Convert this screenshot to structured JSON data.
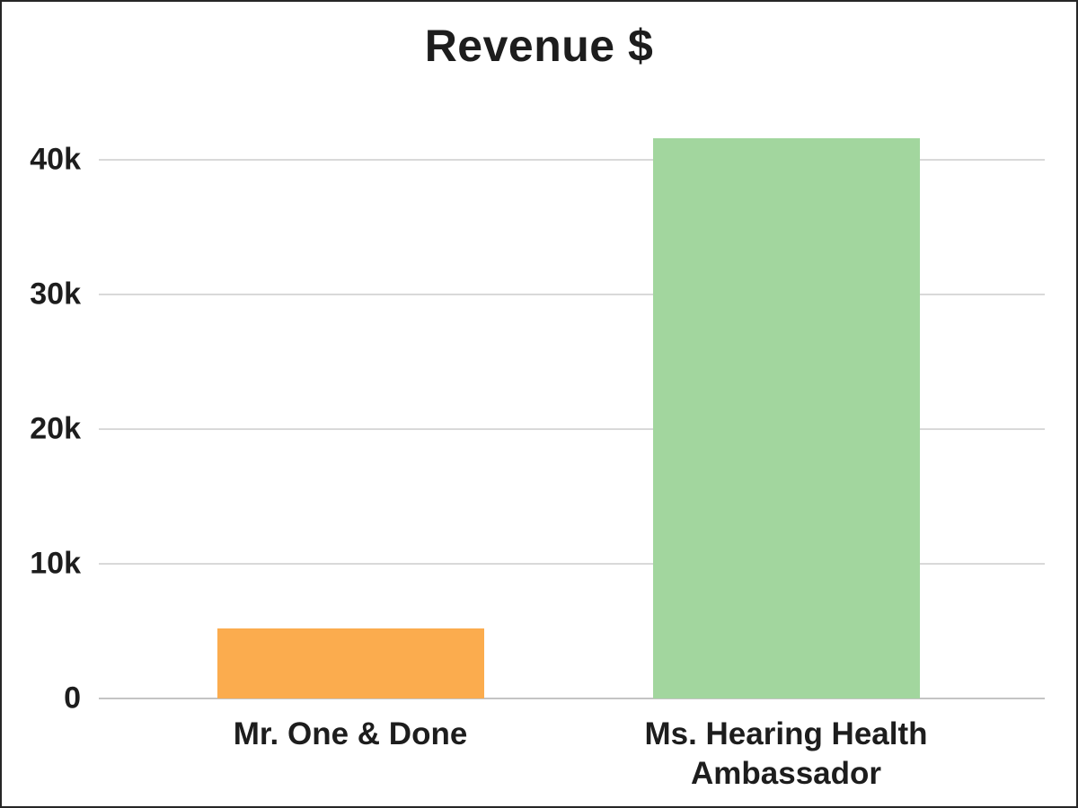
{
  "chart_data": {
    "type": "bar",
    "title": "Revenue $",
    "xlabel": "",
    "ylabel": "",
    "categories": [
      "Mr. One & Done",
      "Ms. Hearing Health Ambassador"
    ],
    "values": [
      5200,
      41600
    ],
    "bar_colors": [
      "#FBAC4E",
      "#A2D69E"
    ],
    "yticks": [
      {
        "label": "0",
        "value": 0
      },
      {
        "label": "10k",
        "value": 10000
      },
      {
        "label": "20k",
        "value": 20000
      },
      {
        "label": "30k",
        "value": 30000
      },
      {
        "label": "40k",
        "value": 40000
      }
    ],
    "ylim": [
      0,
      43300
    ],
    "grid": true,
    "legend": "none",
    "colors": {
      "text": "#1d1d1d",
      "gridline": "#D9D9D9",
      "axis_line": "#C4C4C4",
      "background": "#ffffff",
      "frame_border": "#262626"
    }
  }
}
